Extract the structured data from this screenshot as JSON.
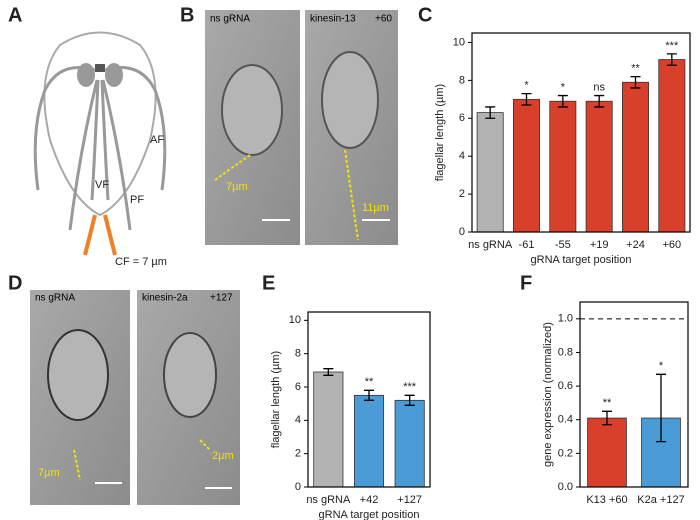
{
  "panels": [
    "A",
    "B",
    "C",
    "D",
    "E",
    "F"
  ],
  "diagram": {
    "labels": [
      "AF",
      "VF",
      "PF",
      "CF = 7 µm"
    ]
  },
  "micrographs": [
    {
      "labels": [
        "ns gRNA",
        "kinesin-13",
        "+60"
      ],
      "measures": [
        "7µm",
        "11µm"
      ]
    },
    {
      "labels": [
        "ns gRNA",
        "kinesin-2a",
        "+127"
      ],
      "measures": [
        "7µm",
        "2µm"
      ]
    }
  ],
  "chart_data": [
    {
      "type": "bar",
      "ylabel": "flagellar length (µm)",
      "xlabel": "gRNA target position",
      "categories": [
        "ns gRNA",
        "-61",
        "-55",
        "+19",
        "+24",
        "+60"
      ],
      "values": [
        6.3,
        7.0,
        6.9,
        6.9,
        7.9,
        9.1
      ],
      "errors": [
        0.3,
        0.3,
        0.3,
        0.3,
        0.3,
        0.3
      ],
      "colors": [
        "#b3b3b3",
        "#d9402b",
        "#d9402b",
        "#d9402b",
        "#d9402b",
        "#d9402b"
      ],
      "annotations": [
        null,
        "*",
        "*",
        "ns",
        "**",
        "***"
      ],
      "ylim": [
        0,
        10.5
      ],
      "yticks": [
        0,
        2,
        4,
        6,
        8,
        10
      ]
    },
    {
      "type": "bar",
      "ylabel": "flagellar length (µm)",
      "xlabel": "gRNA target position",
      "categories": [
        "ns gRNA",
        "+42",
        "+127"
      ],
      "values": [
        6.9,
        5.5,
        5.2
      ],
      "errors": [
        0.2,
        0.3,
        0.3
      ],
      "colors": [
        "#b3b3b3",
        "#4a9bd6",
        "#4a9bd6"
      ],
      "annotations": [
        null,
        "**",
        "***"
      ],
      "ylim": [
        0,
        10.5
      ],
      "yticks": [
        0,
        2,
        4,
        6,
        8,
        10
      ]
    },
    {
      "type": "bar",
      "ylabel": "gene expression (normalized)",
      "categories": [
        "K13 +60",
        "K2a +127"
      ],
      "values": [
        0.41,
        0.41
      ],
      "error_low": [
        0.04,
        0.14
      ],
      "error_high": [
        0.04,
        0.26
      ],
      "colors": [
        "#d9402b",
        "#4a9bd6"
      ],
      "annotations": [
        "**",
        "*"
      ],
      "reference_line": 1,
      "ylim": [
        0,
        1.1
      ],
      "yticks": [
        {
          "value": 0,
          "label": "0.0"
        },
        0.2,
        0.4,
        0.6,
        0.8,
        {
          "value": 1,
          "label": "1.0"
        }
      ]
    }
  ]
}
